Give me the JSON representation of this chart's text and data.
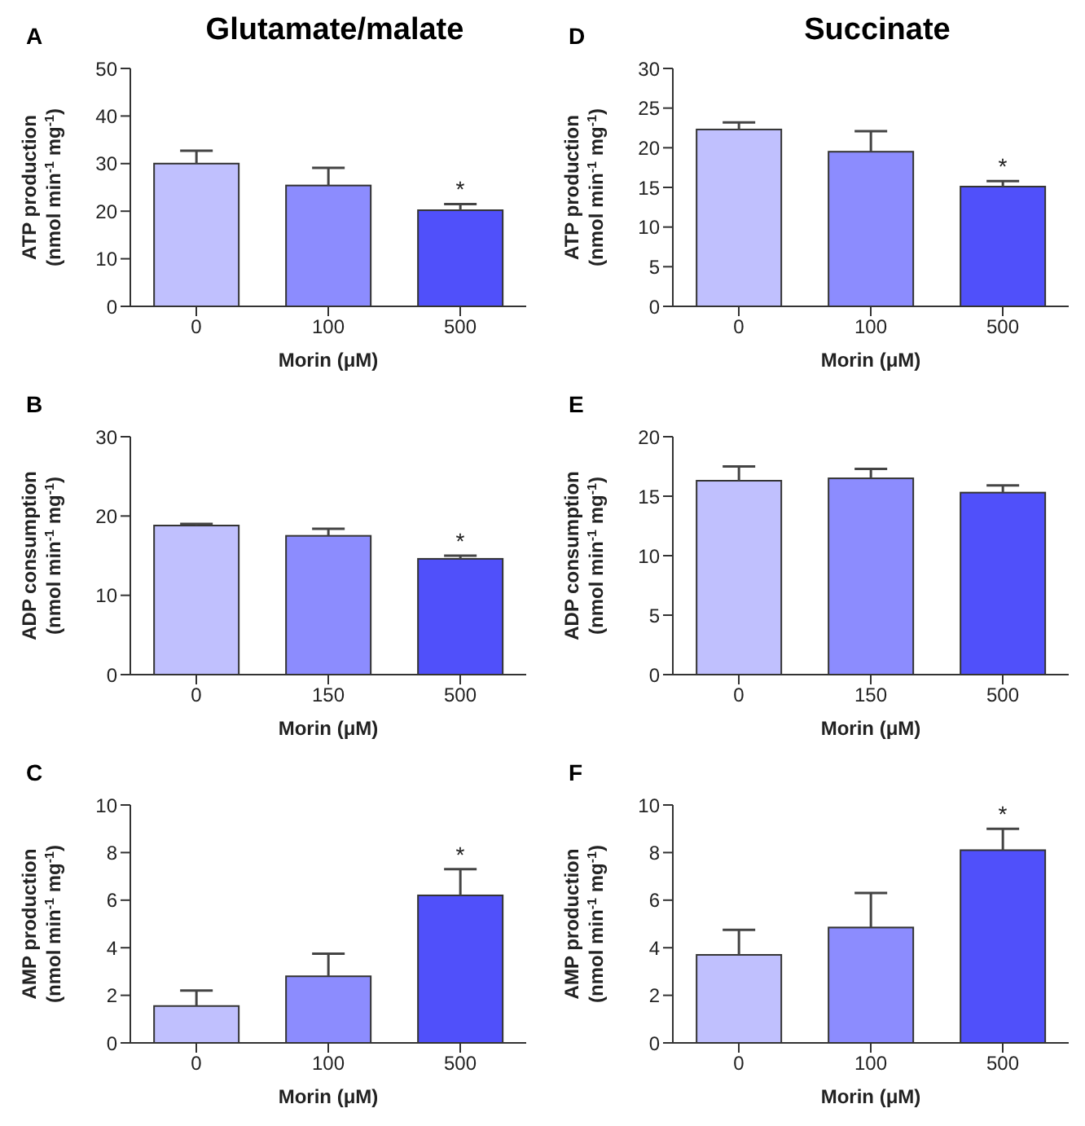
{
  "chart_data": [
    {
      "type": "bar",
      "title": "Glutamate/malate",
      "xlabel": "Morin (μM)",
      "ylabel": "ATP production\n(nmol min$^{-1}$ mg$^{-1}$)",
      "categories": [
        "0",
        "100",
        "500"
      ],
      "values": [
        30,
        25.4,
        20.2
      ],
      "errors": [
        [
          30,
          32.7
        ],
        [
          25.4,
          29.1
        ],
        [
          20.2,
          21.5
        ]
      ],
      "colors": [
        "#c0c0fe",
        "#8c8cfe",
        "#5050fa"
      ],
      "ylim": [
        0,
        50
      ],
      "yticks": [
        0,
        10,
        20,
        30,
        40,
        50
      ],
      "annotations": [
        "A",
        {
          "text": "*",
          "x": "500",
          "y": 21.5
        }
      ]
    },
    {
      "type": "bar",
      "title": "Succinate",
      "xlabel": "Morin (μM)",
      "ylabel": "ATP production\n(nmol min$^{-1}$ mg$^{-1}$)",
      "categories": [
        "0",
        "100",
        "500"
      ],
      "values": [
        22.3,
        19.5,
        15.1
      ],
      "errors": [
        [
          22.3,
          23.2
        ],
        [
          19.5,
          22.1
        ],
        [
          15.1,
          15.8
        ]
      ],
      "colors": [
        "#c0c0fe",
        "#8c8cfe",
        "#5050fa"
      ],
      "ylim": [
        0,
        30
      ],
      "yticks": [
        0,
        5,
        10,
        15,
        20,
        25,
        30
      ],
      "annotations": [
        "D",
        {
          "text": "*",
          "x": "500",
          "y": 15.8
        }
      ]
    },
    {
      "type": "bar",
      "xlabel": "Morin (μM)",
      "ylabel": "ADP consumption\n(nmol min$^{-1}$ mg$^{-1}$)",
      "categories": [
        "0",
        "150",
        "500"
      ],
      "values": [
        18.8,
        17.5,
        14.6
      ],
      "errors": [
        [
          18.8,
          19
        ],
        [
          17.5,
          18.4
        ],
        [
          14.6,
          15
        ]
      ],
      "colors": [
        "#c0c0fe",
        "#8c8cfe",
        "#5050fa"
      ],
      "ylim": [
        0,
        30
      ],
      "yticks": [
        0,
        10,
        20,
        30
      ],
      "annotations": [
        "B",
        {
          "text": "*",
          "x": "500",
          "y": 15
        }
      ]
    },
    {
      "type": "bar",
      "xlabel": "Morin (μM)",
      "ylabel": "ADP consumption\n(nmol min$^{-1}$ mg$^{-1}$)",
      "categories": [
        "0",
        "150",
        "500"
      ],
      "values": [
        16.3,
        16.5,
        15.3
      ],
      "errors": [
        [
          16.3,
          17.5
        ],
        [
          16.5,
          17.3
        ],
        [
          15.3,
          15.9
        ]
      ],
      "colors": [
        "#c0c0fe",
        "#8c8cfe",
        "#5050fa"
      ],
      "ylim": [
        0,
        20
      ],
      "yticks": [
        0,
        5,
        10,
        15,
        20
      ],
      "annotations": [
        "E"
      ]
    },
    {
      "type": "bar",
      "xlabel": "Morin (μM)",
      "ylabel": "AMP production\n(nmol min$^{-1}$ mg$^{-1}$)",
      "categories": [
        "0",
        "100",
        "500"
      ],
      "values": [
        1.55,
        2.8,
        6.2
      ],
      "errors": [
        [
          1.55,
          2.2
        ],
        [
          2.8,
          3.75
        ],
        [
          6.2,
          7.3
        ]
      ],
      "colors": [
        "#c0c0fe",
        "#8c8cfe",
        "#5050fa"
      ],
      "ylim": [
        0,
        10
      ],
      "yticks": [
        0,
        2,
        4,
        6,
        8,
        10
      ],
      "annotations": [
        "C",
        {
          "text": "*",
          "x": "500",
          "y": 7.3
        }
      ]
    },
    {
      "type": "bar",
      "xlabel": "Morin (μM)",
      "ylabel": "AMP production\n(nmol min$^{-1}$ mg$^{-1}$)",
      "categories": [
        "0",
        "100",
        "500"
      ],
      "values": [
        3.7,
        4.85,
        8.1
      ],
      "errors": [
        [
          3.7,
          4.75
        ],
        [
          4.85,
          6.3
        ],
        [
          8.1,
          9
        ]
      ],
      "colors": [
        "#c0c0fe",
        "#8c8cfe",
        "#5050fa"
      ],
      "ylim": [
        0,
        10
      ],
      "yticks": [
        0,
        2,
        4,
        6,
        8,
        10
      ],
      "annotations": [
        "F",
        {
          "text": "*",
          "x": "500",
          "y": 9
        }
      ]
    }
  ]
}
